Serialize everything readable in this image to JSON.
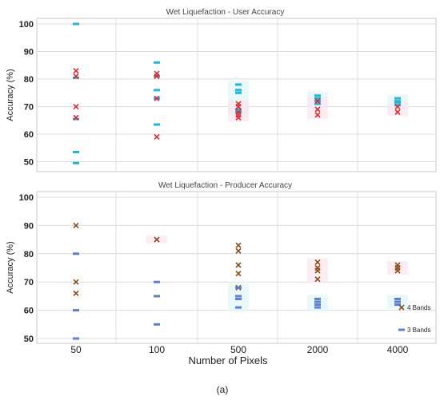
{
  "caption": "(a)",
  "chart_data": [
    {
      "type": "scatter",
      "title": "Wet Liquefaction - User Accuracy",
      "xlabel": "",
      "ylabel": "Accuracy (%)",
      "ylim": [
        48,
        101
      ],
      "yticks": [
        100,
        90,
        80,
        70,
        60,
        50
      ],
      "categories": [
        "50",
        "100",
        "500",
        "2000",
        "4000"
      ],
      "grid": true,
      "series": [
        {
          "marker": "dash",
          "color": "#1fb6de",
          "points": [
            {
              "x": "50",
              "y": 100
            },
            {
              "x": "50",
              "y": 80.5
            },
            {
              "x": "50",
              "y": 65.5
            },
            {
              "x": "50",
              "y": 53.5
            },
            {
              "x": "50",
              "y": 49.5
            },
            {
              "x": "100",
              "y": 86
            },
            {
              "x": "100",
              "y": 81
            },
            {
              "x": "100",
              "y": 76
            },
            {
              "x": "100",
              "y": 73
            },
            {
              "x": "100",
              "y": 63.5
            },
            {
              "x": "500",
              "y": 78
            },
            {
              "x": "500",
              "y": 76
            },
            {
              "x": "500",
              "y": 75
            },
            {
              "x": "500",
              "y": 69
            },
            {
              "x": "500",
              "y": 68
            },
            {
              "x": "2000",
              "y": 74
            },
            {
              "x": "2000",
              "y": 73
            },
            {
              "x": "2000",
              "y": 72
            },
            {
              "x": "2000",
              "y": 71
            },
            {
              "x": "4000",
              "y": 73
            },
            {
              "x": "4000",
              "y": 72
            },
            {
              "x": "4000",
              "y": 71.5
            },
            {
              "x": "4000",
              "y": 70.5
            }
          ]
        },
        {
          "marker": "x",
          "color": "#e0262b",
          "points": [
            {
              "x": "50",
              "y": 83
            },
            {
              "x": "50",
              "y": 81
            },
            {
              "x": "50",
              "y": 70
            },
            {
              "x": "50",
              "y": 66
            },
            {
              "x": "100",
              "y": 82
            },
            {
              "x": "100",
              "y": 81
            },
            {
              "x": "100",
              "y": 73
            },
            {
              "x": "100",
              "y": 59
            },
            {
              "x": "500",
              "y": 71
            },
            {
              "x": "500",
              "y": 70
            },
            {
              "x": "500",
              "y": 68
            },
            {
              "x": "500",
              "y": 67
            },
            {
              "x": "500",
              "y": 66
            },
            {
              "x": "2000",
              "y": 72
            },
            {
              "x": "2000",
              "y": 69
            },
            {
              "x": "2000",
              "y": 67
            },
            {
              "x": "4000",
              "y": 70
            },
            {
              "x": "4000",
              "y": 68
            }
          ]
        }
      ]
    },
    {
      "type": "scatter",
      "title": "Wet Liquefaction - Producer Accuracy",
      "xlabel": "Number  of Pixels",
      "ylabel": "Accuracy (%)",
      "ylim": [
        49,
        100
      ],
      "yticks": [
        100,
        90,
        80,
        70,
        60,
        50
      ],
      "categories": [
        "50",
        "100",
        "500",
        "2000",
        "4000"
      ],
      "grid": true,
      "legend": "bottom-right",
      "series": [
        {
          "name": "4 Bands",
          "marker": "x",
          "color": "#8a4a12",
          "points": [
            {
              "x": "50",
              "y": 90
            },
            {
              "x": "50",
              "y": 70
            },
            {
              "x": "50",
              "y": 66
            },
            {
              "x": "100",
              "y": 85
            },
            {
              "x": "500",
              "y": 83
            },
            {
              "x": "500",
              "y": 81
            },
            {
              "x": "500",
              "y": 76
            },
            {
              "x": "500",
              "y": 73
            },
            {
              "x": "500",
              "y": 68
            },
            {
              "x": "2000",
              "y": 77
            },
            {
              "x": "2000",
              "y": 75
            },
            {
              "x": "2000",
              "y": 74
            },
            {
              "x": "2000",
              "y": 71
            },
            {
              "x": "4000",
              "y": 76
            },
            {
              "x": "4000",
              "y": 75
            },
            {
              "x": "4000",
              "y": 74
            }
          ]
        },
        {
          "name": "3 Bands",
          "marker": "dash",
          "color": "#5b7fd6",
          "points": [
            {
              "x": "50",
              "y": 80
            },
            {
              "x": "50",
              "y": 60
            },
            {
              "x": "50",
              "y": 50
            },
            {
              "x": "100",
              "y": 70
            },
            {
              "x": "100",
              "y": 65
            },
            {
              "x": "100",
              "y": 55
            },
            {
              "x": "500",
              "y": 68
            },
            {
              "x": "500",
              "y": 65
            },
            {
              "x": "500",
              "y": 64
            },
            {
              "x": "500",
              "y": 61
            },
            {
              "x": "2000",
              "y": 64
            },
            {
              "x": "2000",
              "y": 63
            },
            {
              "x": "2000",
              "y": 62
            },
            {
              "x": "2000",
              "y": 61
            },
            {
              "x": "4000",
              "y": 64
            },
            {
              "x": "4000",
              "y": 63
            },
            {
              "x": "4000",
              "y": 62
            }
          ]
        }
      ]
    }
  ]
}
